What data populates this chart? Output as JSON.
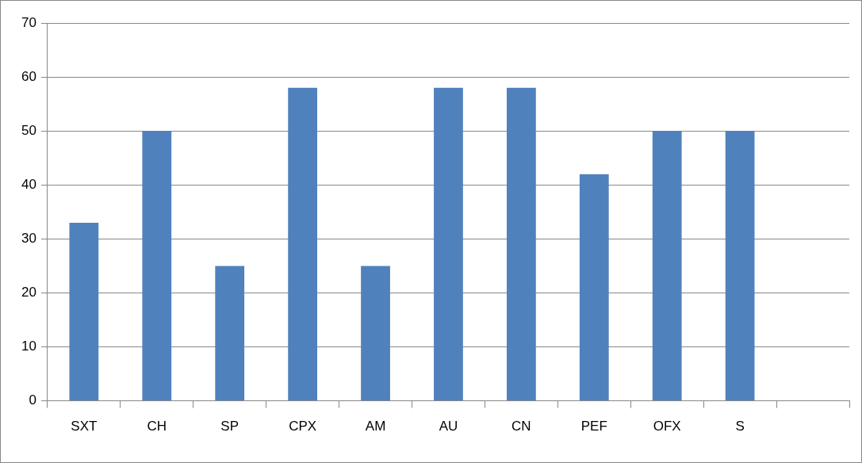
{
  "chart_data": {
    "type": "bar",
    "categories": [
      "SXT",
      "CH",
      "SP",
      "CPX",
      "AM",
      "AU",
      "CN",
      "PEF",
      "OFX",
      "S",
      null
    ],
    "values": [
      33,
      50,
      25,
      58,
      25,
      58,
      58,
      42,
      50,
      50,
      null
    ],
    "color": "#4f81bd",
    "ylim": [
      0,
      70
    ],
    "yticks": [
      0,
      10,
      20,
      30,
      40,
      50,
      60,
      70
    ],
    "grid": "y",
    "legend": false
  }
}
